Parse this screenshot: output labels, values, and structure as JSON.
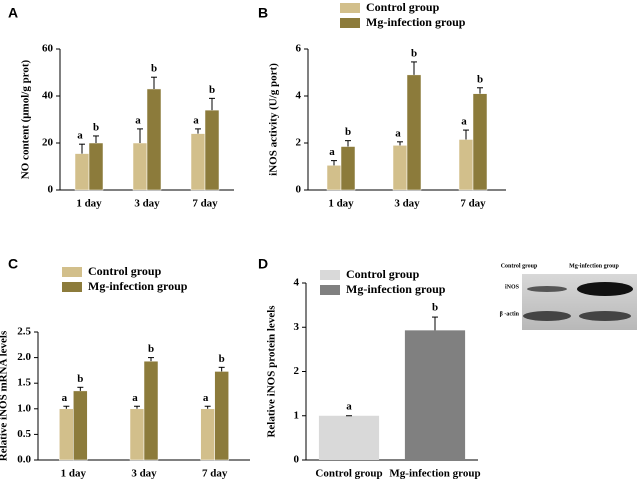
{
  "chart_data": [
    {
      "type": "bar",
      "panel": "A",
      "ylabel": "NO content (μmol/g prot)",
      "categories": [
        "1 day",
        "3 day",
        "7 day"
      ],
      "series": [
        {
          "name": "Control group",
          "color": "#d2bf8b",
          "values": [
            15.5,
            20,
            24
          ],
          "errors": [
            4,
            6,
            2
          ],
          "letters": [
            "a",
            "a",
            "a"
          ]
        },
        {
          "name": "Mg-infection group",
          "color": "#8c7b3b",
          "values": [
            20,
            43,
            34
          ],
          "errors": [
            3,
            5,
            5
          ],
          "letters": [
            "b",
            "b",
            "b"
          ]
        }
      ],
      "ylim": [
        0,
        60
      ],
      "yticks": [
        0,
        20,
        40,
        60
      ]
    },
    {
      "type": "bar",
      "panel": "B",
      "ylabel": "iNOS activity (U/g port)",
      "categories": [
        "1 day",
        "3 day",
        "7 day"
      ],
      "series": [
        {
          "name": "Control group",
          "color": "#d2bf8b",
          "values": [
            1.05,
            1.9,
            2.15
          ],
          "errors": [
            0.2,
            0.15,
            0.4
          ],
          "letters": [
            "a",
            "a",
            "a"
          ]
        },
        {
          "name": "Mg-infection group",
          "color": "#8c7b3b",
          "values": [
            1.85,
            4.9,
            4.1
          ],
          "errors": [
            0.25,
            0.55,
            0.25
          ],
          "letters": [
            "b",
            "b",
            "b"
          ]
        }
      ],
      "ylim": [
        0,
        6
      ],
      "yticks": [
        0,
        2,
        4,
        6
      ]
    },
    {
      "type": "bar",
      "panel": "C",
      "ylabel": "Relative iNOS mRNA levels",
      "categories": [
        "1 day",
        "3 day",
        "7 day"
      ],
      "series": [
        {
          "name": "Control group",
          "color": "#d2bf8b",
          "values": [
            1.0,
            1.0,
            1.0
          ],
          "errors": [
            0.05,
            0.05,
            0.05
          ],
          "letters": [
            "a",
            "a",
            "a"
          ]
        },
        {
          "name": "Mg-infection group",
          "color": "#8c7b3b",
          "values": [
            1.35,
            1.93,
            1.73
          ],
          "errors": [
            0.07,
            0.07,
            0.08
          ],
          "letters": [
            "b",
            "b",
            "b"
          ]
        }
      ],
      "ylim": [
        0,
        2.5
      ],
      "yticks": [
        {
          "value": 0,
          "label": "0.0"
        },
        0.5,
        {
          "value": 1,
          "label": "1.0"
        },
        1.5,
        {
          "value": 2,
          "label": "2.0"
        },
        2.5
      ]
    },
    {
      "type": "single-bar",
      "panel": "D",
      "ylabel": "Relative iNOS protein levels",
      "categories": [
        "Control group",
        "Mg-infection group"
      ],
      "values": [
        1.0,
        2.93
      ],
      "errors": [
        0,
        0.3
      ],
      "colors": [
        "#d9d9d9",
        "#808080"
      ],
      "letters": [
        "a",
        "b"
      ],
      "ylim": [
        0,
        4
      ],
      "yticks": [
        0,
        1,
        2,
        3,
        4
      ],
      "blot": {
        "columns": [
          "Control group",
          "Mg-infection group"
        ],
        "rows": [
          "iNOS",
          "β -actin"
        ]
      }
    }
  ]
}
